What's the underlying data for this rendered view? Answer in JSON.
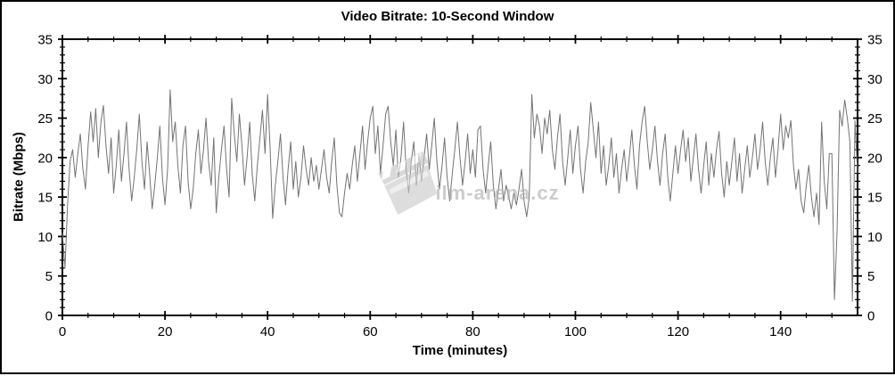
{
  "chart_data": {
    "type": "line",
    "title": "Video Bitrate: 10-Second Window",
    "xlabel": "Time (minutes)",
    "ylabel": "Bitrate (Mbps)",
    "xlim": [
      0,
      155
    ],
    "ylim": [
      0,
      35
    ],
    "x_major_ticks": [
      0,
      20,
      40,
      60,
      80,
      100,
      120,
      140
    ],
    "x_minor_step": 5,
    "y_major_ticks": [
      0,
      5,
      10,
      15,
      20,
      25,
      30,
      35
    ],
    "y_minor_step": 1,
    "axes_mirrored": true,
    "grid": false,
    "line_color": "#737373",
    "watermark": {
      "text": "Film-arena.cz",
      "icon": "clapperboard-icon",
      "color": "#c6c6c6"
    },
    "series": [
      {
        "name": "bitrate-10s-window",
        "x_start": 0,
        "x_step_minutes": 0.5,
        "values": [
          10.5,
          6.0,
          14.0,
          19.5,
          21.0,
          17.5,
          20.5,
          23.0,
          18.5,
          16.0,
          21.5,
          25.8,
          22.0,
          26.2,
          20.0,
          24.5,
          26.6,
          21.5,
          18.0,
          22.5,
          15.5,
          19.0,
          23.5,
          17.0,
          20.5,
          24.5,
          18.5,
          14.5,
          17.5,
          21.0,
          25.5,
          19.5,
          16.0,
          22.0,
          18.0,
          13.5,
          16.5,
          20.0,
          24.0,
          17.5,
          14.0,
          18.5,
          28.6,
          22.0,
          24.5,
          19.0,
          15.5,
          21.5,
          24.0,
          17.0,
          13.5,
          16.0,
          20.5,
          23.5,
          18.0,
          21.0,
          25.0,
          19.5,
          16.5,
          22.5,
          13.0,
          17.5,
          21.0,
          24.0,
          18.5,
          15.0,
          27.5,
          23.0,
          19.5,
          25.5,
          21.5,
          16.5,
          20.0,
          24.5,
          18.0,
          14.5,
          19.0,
          22.5,
          26.0,
          20.5,
          28.0,
          21.0,
          12.3,
          16.5,
          19.5,
          23.0,
          17.5,
          14.0,
          18.5,
          22.0,
          16.0,
          19.5,
          15.0,
          17.5,
          21.5,
          18.5,
          16.5,
          20.0,
          17.0,
          19.0,
          16.0,
          18.5,
          21.0,
          17.5,
          15.5,
          19.5,
          22.5,
          16.5,
          13.0,
          12.5,
          15.5,
          18.0,
          16.0,
          19.0,
          21.5,
          17.0,
          20.5,
          24.0,
          18.5,
          22.0,
          25.0,
          26.5,
          20.5,
          24.0,
          18.0,
          21.5,
          25.5,
          26.5,
          22.0,
          19.0,
          23.5,
          17.5,
          20.0,
          24.5,
          18.5,
          15.5,
          19.5,
          22.0,
          16.5,
          20.5,
          17.0,
          20.0,
          23.0,
          18.5,
          21.5,
          25.0,
          19.5,
          16.0,
          19.0,
          22.5,
          17.5,
          14.5,
          18.0,
          21.0,
          24.5,
          20.0,
          16.5,
          19.5,
          23.0,
          18.0,
          21.0,
          17.5,
          23.5,
          24.0,
          18.5,
          15.5,
          19.0,
          22.0,
          16.5,
          13.5,
          16.0,
          18.5,
          14.5,
          16.5,
          15.0,
          13.5,
          15.5,
          14.0,
          16.0,
          18.5,
          14.5,
          12.5,
          15.0,
          28.0,
          22.5,
          25.5,
          24.0,
          20.5,
          25.0,
          23.0,
          26.0,
          21.0,
          18.5,
          22.5,
          25.5,
          19.5,
          16.5,
          20.0,
          23.5,
          18.0,
          21.5,
          24.0,
          18.5,
          15.5,
          19.5,
          22.0,
          27.0,
          23.5,
          20.0,
          24.5,
          18.0,
          21.5,
          16.5,
          19.0,
          22.5,
          17.5,
          20.5,
          15.5,
          18.5,
          21.0,
          17.0,
          20.0,
          23.5,
          19.0,
          16.0,
          21.5,
          24.5,
          26.5,
          22.0,
          18.5,
          21.0,
          24.0,
          19.5,
          16.5,
          20.5,
          23.0,
          17.5,
          14.5,
          18.0,
          21.5,
          18.0,
          21.0,
          23.5,
          19.5,
          22.5,
          17.0,
          20.0,
          23.0,
          18.5,
          15.5,
          19.0,
          22.0,
          16.5,
          20.5,
          17.5,
          21.0,
          23.3,
          18.0,
          15.0,
          19.5,
          16.5,
          19.5,
          22.5,
          17.0,
          20.5,
          15.5,
          18.5,
          21.5,
          17.5,
          20.0,
          23.0,
          18.5,
          21.0,
          24.5,
          19.5,
          16.5,
          20.0,
          22.5,
          17.5,
          21.0,
          25.5,
          21.0,
          24.0,
          22.5,
          24.7,
          19.0,
          16.0,
          18.5,
          14.5,
          13.0,
          16.5,
          19.0,
          15.0,
          12.5,
          15.5,
          11.5,
          24.5,
          17.0,
          13.5,
          20.5,
          20.5,
          2.0,
          10.5,
          26.0,
          24.0,
          27.3,
          25.0,
          22.0,
          1.8,
          24.7,
          18.0
        ]
      }
    ]
  }
}
